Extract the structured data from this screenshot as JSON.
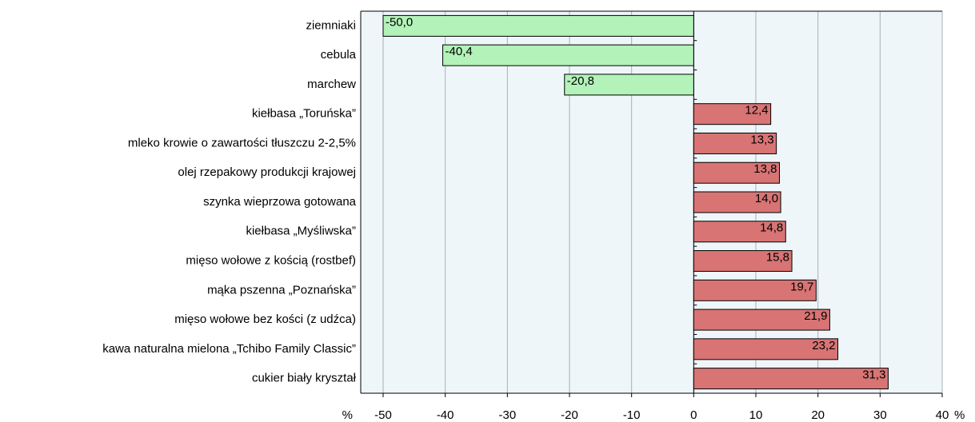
{
  "chart_data": {
    "type": "bar",
    "orientation": "horizontal",
    "categories": [
      "ziemniaki",
      "cebula",
      "marchew",
      "kiełbasa „Toruńska”",
      "mleko krowie o zawartości tłuszczu 2-2,5%",
      "olej rzepakowy produkcji krajowej",
      "szynka wieprzowa gotowana",
      "kiełbasa „Myśliwska”",
      "mięso wołowe z kością (rostbef)",
      "mąka pszenna „Poznańska”",
      "mięso wołowe bez kości (z udźca)",
      "kawa naturalna mielona „Tchibo Family Classic”",
      "cukier biały kryształ"
    ],
    "values": [
      -50.0,
      -40.4,
      -20.8,
      12.4,
      13.3,
      13.8,
      14.0,
      14.8,
      15.8,
      19.7,
      21.9,
      23.2,
      31.3
    ],
    "value_labels": [
      "-50,0",
      "-40,4",
      "-20,8",
      "12,4",
      "13,3",
      "13,8",
      "14,0",
      "14,8",
      "15,8",
      "19,7",
      "21,9",
      "23,2",
      "31,3"
    ],
    "negative_color": "#b3f2b8",
    "positive_color": "#d87474",
    "xlim": [
      -50,
      40
    ],
    "xticks": [
      -50,
      -40,
      -30,
      -20,
      -10,
      0,
      10,
      20,
      30,
      40
    ],
    "axis_unit": "%",
    "grid": true
  }
}
